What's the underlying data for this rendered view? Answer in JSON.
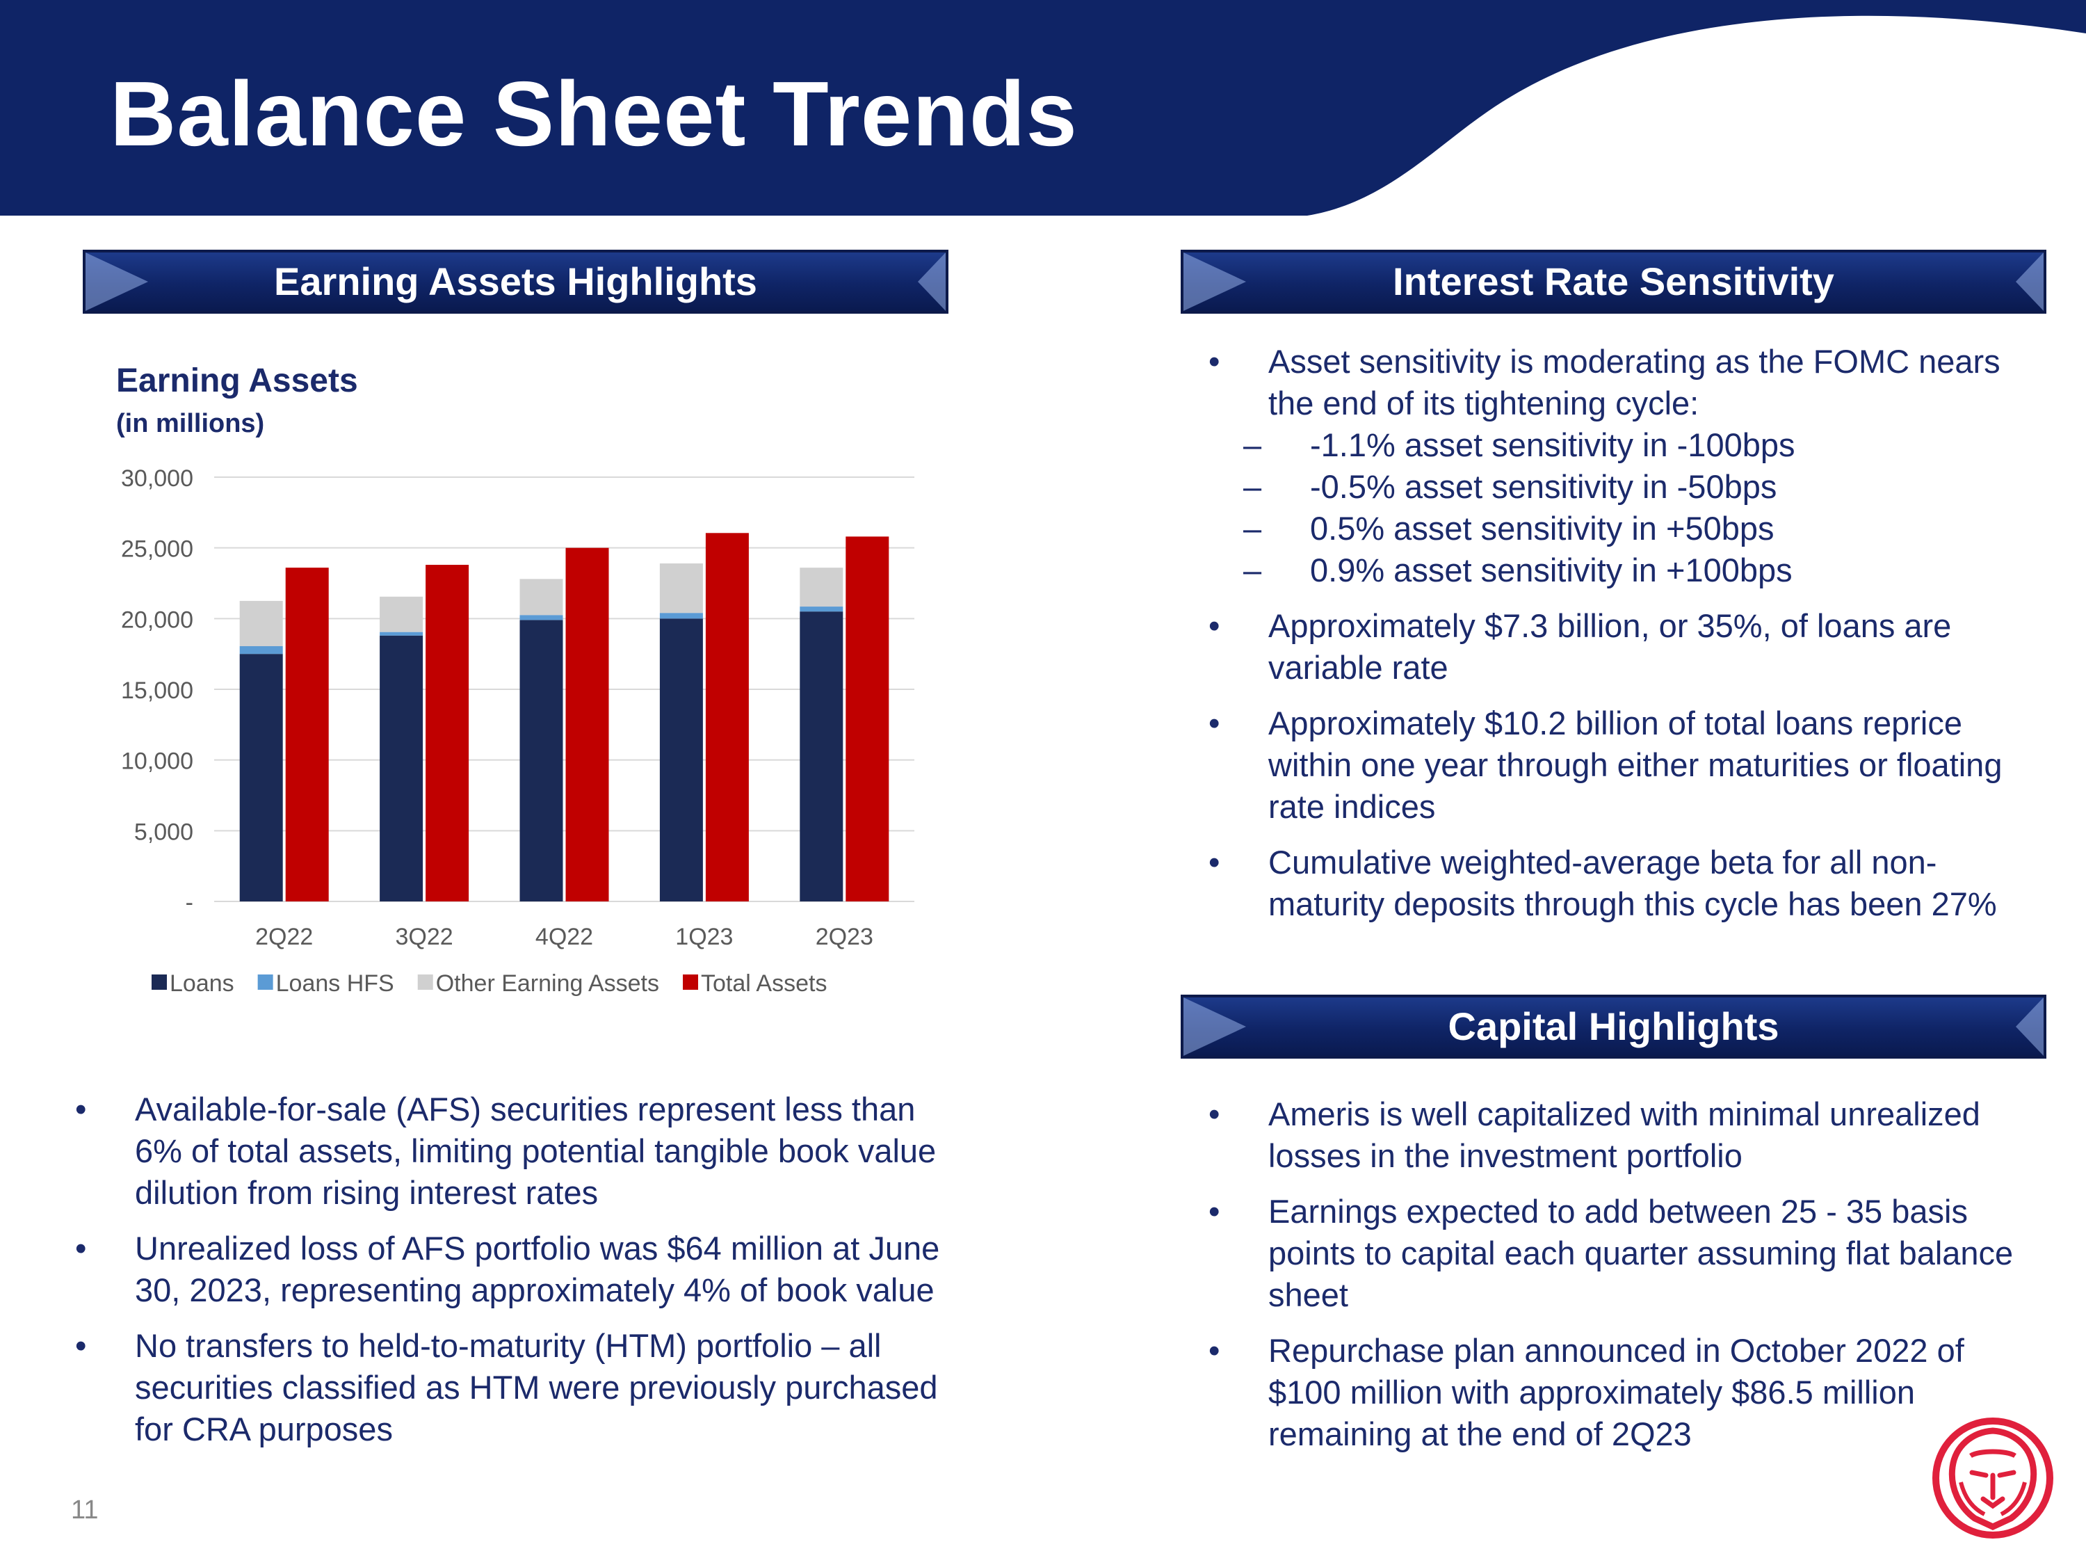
{
  "header": {
    "title": "Balance Sheet Trends"
  },
  "sections": {
    "earning_assets": "Earning Assets Highlights",
    "interest_rate": "Interest Rate Sensitivity",
    "capital": "Capital Highlights"
  },
  "chart_data": {
    "type": "bar",
    "title": "Earning Assets",
    "subtitle": "(in millions)",
    "categories": [
      "2Q22",
      "3Q22",
      "4Q22",
      "1Q23",
      "2Q23"
    ],
    "series": [
      {
        "name": "Loans",
        "values": [
          17500,
          18800,
          19900,
          20000,
          20500
        ],
        "color": "#1b2a55",
        "stack": "earning"
      },
      {
        "name": "Loans HFS",
        "values": [
          550,
          250,
          350,
          400,
          350
        ],
        "color": "#5b9bd5",
        "stack": "earning"
      },
      {
        "name": "Other Earning Assets",
        "values": [
          3200,
          2500,
          2550,
          3500,
          2750
        ],
        "color": "#d0d0d0",
        "stack": "earning"
      },
      {
        "name": "Total Assets",
        "values": [
          23600,
          23800,
          25000,
          26050,
          25800
        ],
        "color": "#c00000",
        "stack": "total"
      }
    ],
    "ylim": [
      0,
      30000
    ],
    "yticks": [
      0,
      5000,
      10000,
      15000,
      20000,
      25000,
      30000
    ],
    "ytick_labels": [
      "-",
      "5,000",
      "10,000",
      "15,000",
      "20,000",
      "25,000",
      "30,000"
    ],
    "legend": "bottom",
    "grid": true
  },
  "left_bullets": [
    "Available-for-sale (AFS) securities represent less than 6% of total assets, limiting potential tangible book value dilution from rising interest rates",
    "Unrealized loss of AFS portfolio was $64 million at June 30, 2023, representing approximately 4% of book value",
    "No transfers to held-to-maturity (HTM) portfolio – all securities classified as HTM were previously purchased for CRA purposes"
  ],
  "interest_bullets": {
    "b1": "Asset sensitivity is moderating as the FOMC nears the end of its tightening cycle:",
    "subs": [
      "-1.1% asset sensitivity in -100bps",
      "-0.5% asset sensitivity in -50bps",
      "0.5% asset sensitivity in +50bps",
      "0.9% asset sensitivity in +100bps"
    ],
    "b2": "Approximately $7.3 billion, or 35%, of loans are variable rate",
    "b3": "Approximately $10.2 billion of total loans reprice within one year through either maturities or floating rate indices",
    "b4": "Cumulative weighted-average beta for all non-maturity deposits through this cycle has been 27%"
  },
  "capital_bullets": [
    "Ameris is well capitalized with minimal unrealized losses in the investment portfolio",
    "Earnings expected to add between 25 - 35 basis points to capital each quarter assuming flat balance sheet",
    "Repurchase plan announced in October 2022 of $100 million with approximately $86.5 million remaining at the end of 2Q23"
  ],
  "footer": {
    "page_number": "11"
  },
  "colors": {
    "navy": "#0f2466",
    "text": "#1b2a6b",
    "red": "#c00000",
    "logo": "#e0203c"
  }
}
